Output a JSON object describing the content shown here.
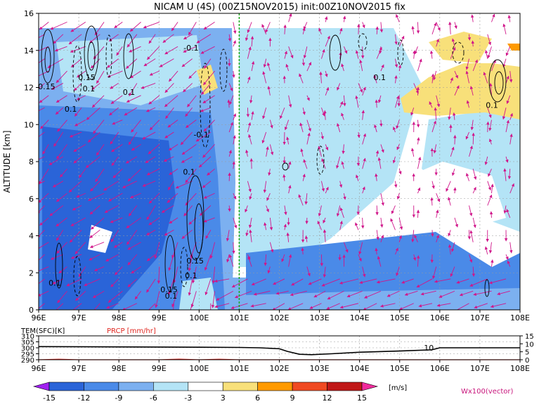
{
  "chart_data": [
    {
      "type": "heatmap",
      "title": "NICAM U (4S) (00Z15NOV2015) init:00Z10NOV2015 fix",
      "ylabel": "ALTITUDE [km]",
      "xlim": [
        96,
        108
      ],
      "ylim": [
        0,
        16
      ],
      "x_ticks": [
        "96E",
        "97E",
        "98E",
        "99E",
        "100E",
        "101E",
        "102E",
        "103E",
        "104E",
        "105E",
        "106E",
        "107E",
        "108E"
      ],
      "y_ticks": [
        "0",
        "2",
        "4",
        "6",
        "8",
        "10",
        "12",
        "14",
        "16"
      ],
      "grid": true,
      "reference_line_x": 101,
      "contour_labels": [
        {
          "text": "0.15",
          "x": 96.2,
          "y": 11.9
        },
        {
          "text": "0.1",
          "x": 96.8,
          "y": 10.7
        },
        {
          "text": "0.15",
          "x": 97.2,
          "y": 12.4
        },
        {
          "text": "0.1",
          "x": 97.25,
          "y": 11.8
        },
        {
          "text": "0.1",
          "x": 98.25,
          "y": 11.6
        },
        {
          "text": "-0.1",
          "x": 99.8,
          "y": 14.0
        },
        {
          "text": "-0.1",
          "x": 100.05,
          "y": 9.3
        },
        {
          "text": "0.1",
          "x": 99.75,
          "y": 7.3
        },
        {
          "text": "0.1",
          "x": 96.4,
          "y": 1.3
        },
        {
          "text": "0.15",
          "x": 99.25,
          "y": 0.95
        },
        {
          "text": "0.1",
          "x": 99.3,
          "y": 0.6
        },
        {
          "text": "0.1",
          "x": 99.8,
          "y": 1.7
        },
        {
          "text": "0.15",
          "x": 99.9,
          "y": 2.5
        },
        {
          "text": "0.1",
          "x": 104.5,
          "y": 12.4
        },
        {
          "text": "0.1",
          "x": 107.3,
          "y": 10.9
        }
      ],
      "colorbar": {
        "levels": [
          "-15",
          "-12",
          "-9",
          "-6",
          "-3",
          "3",
          "6",
          "9",
          "12",
          "15"
        ],
        "colors": [
          "#a020f0",
          "#2a64d8",
          "#4a8ae8",
          "#7cb0f0",
          "#b4e4f6",
          "#ffffff",
          "#f8e07a",
          "#ff9a00",
          "#f04a22",
          "#c01818",
          "#f02a9c"
        ],
        "unit": "[m/s]"
      },
      "vector_label": "Wx100(vector)"
    },
    {
      "type": "line",
      "title": "TEM(SFC)[K]",
      "series": [
        {
          "name": "TEM(SFC)[K]",
          "color": "#000000",
          "x": [
            96,
            100,
            101,
            101.5,
            102,
            102.2,
            102.5,
            102.8,
            103.3,
            104,
            105,
            105.8,
            106,
            108
          ],
          "y": [
            301,
            300.5,
            300.3,
            300,
            299.2,
            297,
            294.6,
            294.2,
            295,
            296.3,
            297.3,
            298.3,
            300,
            300
          ]
        },
        {
          "name": "PRCP [mm/hr]",
          "color": "#e0261f",
          "x": [
            96,
            96.5,
            97,
            99,
            99.5,
            100,
            100.5,
            101,
            108
          ],
          "y": [
            0,
            0.3,
            0,
            0,
            0.4,
            0,
            0.3,
            0,
            0
          ]
        }
      ],
      "legend": [
        "TEM(SFC)[K]",
        "PRCP [mm/hr]"
      ],
      "annotations": [
        {
          "text": "10",
          "x": 105.85,
          "y": 300
        }
      ],
      "y_ticks_left": [
        "310",
        "305",
        "300",
        "295",
        "290"
      ],
      "y_ticks_right": [
        "15",
        "10",
        "5",
        "0"
      ],
      "x_ticks": [
        "96E",
        "97E",
        "98E",
        "99E",
        "100E",
        "101E",
        "102E",
        "103E",
        "104E",
        "105E",
        "106E",
        "107E",
        "108E"
      ],
      "ylim_left": [
        290,
        310
      ],
      "ylim_right": [
        0,
        15
      ],
      "xlim": [
        96,
        108
      ],
      "grid": true
    }
  ]
}
